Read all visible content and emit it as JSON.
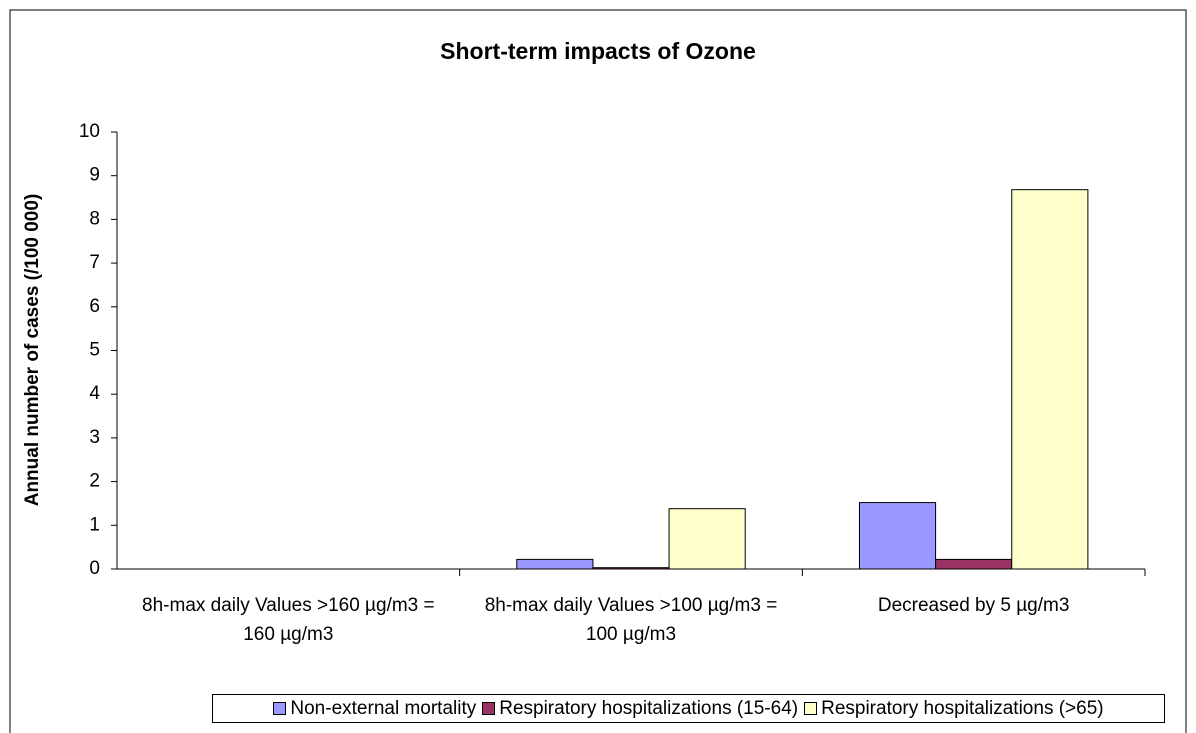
{
  "chart_data": {
    "type": "bar",
    "title": "Short-term impacts of Ozone",
    "y_label": "Annual number of cases (/100 000)",
    "categories": [
      "8h-max daily Values >160 µg/m3 = 160 µg/m3",
      "8h-max daily Values >100 µg/m3 = 100 µg/m3",
      "Decreased by 5 µg/m3"
    ],
    "series": [
      {
        "name": "Non-external mortality",
        "color": "#9999ff",
        "values": [
          0,
          0.22,
          1.52
        ]
      },
      {
        "name": "Respiratory hospitalizations (15-64)",
        "color": "#993366",
        "values": [
          0,
          0.03,
          0.22
        ]
      },
      {
        "name": "Respiratory hospitalizations (>65)",
        "color": "#ffffcc",
        "values": [
          0,
          1.38,
          8.68
        ]
      }
    ],
    "ylim": [
      0,
      10
    ],
    "yticks": [
      0,
      1,
      2,
      3,
      4,
      5,
      6,
      7,
      8,
      9,
      10
    ],
    "grid": false,
    "legend": "bottom"
  }
}
